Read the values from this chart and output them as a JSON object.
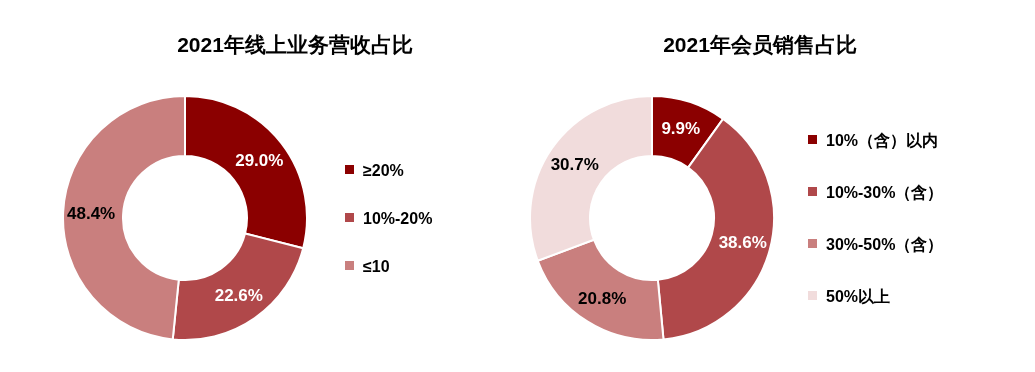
{
  "chart_data": [
    {
      "type": "donut",
      "title": "2021年线上业务营收占比",
      "categories": [
        "≥20%",
        "10%-20%",
        "≤10"
      ],
      "values": [
        29.0,
        22.6,
        48.4
      ],
      "colors": [
        "#8b0000",
        "#b0484a",
        "#c97f7e"
      ],
      "value_labels": [
        "29.0%",
        "22.6%",
        "48.4%"
      ],
      "legend": "right"
    },
    {
      "type": "donut",
      "title": "2021年会员销售占比",
      "categories": [
        "10%（含）以内",
        "10%-30%（含）",
        "30%-50%（含）",
        "50%以上"
      ],
      "values": [
        9.9,
        38.6,
        20.8,
        30.7
      ],
      "colors": [
        "#8b0000",
        "#b0484a",
        "#c97f7e",
        "#f1dcdc"
      ],
      "value_labels": [
        "9.9%",
        "38.6%",
        "20.8%",
        "30.7%"
      ],
      "legend": "right"
    }
  ]
}
